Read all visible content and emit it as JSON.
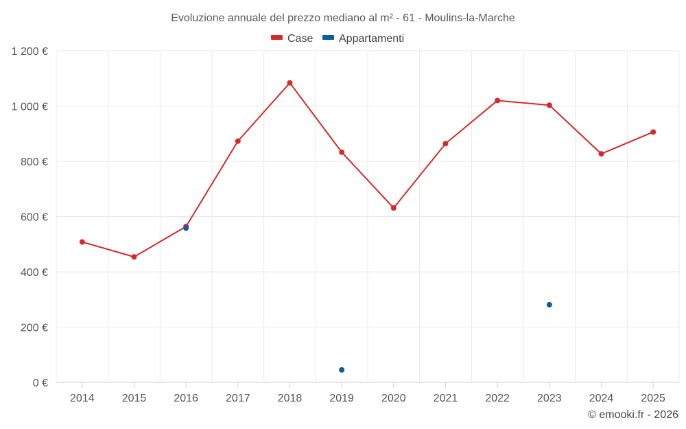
{
  "chart_data": {
    "type": "line",
    "title": "Evoluzione annuale del prezzo mediano al m² - 61 - Moulins-la-Marche",
    "xlabel": "",
    "ylabel": "",
    "categories": [
      "2014",
      "2015",
      "2016",
      "2017",
      "2018",
      "2019",
      "2020",
      "2021",
      "2022",
      "2023",
      "2024",
      "2025"
    ],
    "ylim": [
      0,
      1200
    ],
    "y_ticks": [
      0,
      200,
      400,
      600,
      800,
      1000,
      1200
    ],
    "y_tick_labels": [
      "0 €",
      "200 €",
      "400 €",
      "600 €",
      "800 €",
      "1 000 €",
      "1 200 €"
    ],
    "grid": true,
    "legend_position": "top-center",
    "series": [
      {
        "name": "Case",
        "color": "#d42a2a",
        "style": "line",
        "values": [
          508,
          454,
          564,
          873,
          1084,
          833,
          631,
          864,
          1020,
          1003,
          827,
          906
        ]
      },
      {
        "name": "Appartamenti",
        "color": "#0a5e9e",
        "style": "points",
        "values": [
          null,
          null,
          558,
          null,
          null,
          45,
          null,
          null,
          null,
          281,
          null,
          null
        ]
      }
    ],
    "credit": "© emooki.fr - 2026"
  }
}
